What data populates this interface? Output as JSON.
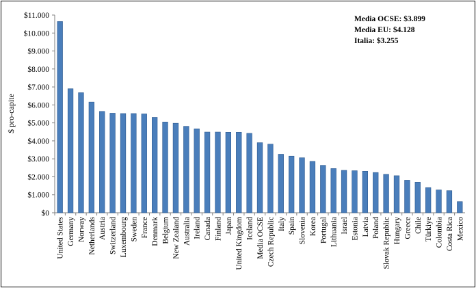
{
  "chart_data": {
    "type": "bar",
    "ylabel": "$ pro-capite",
    "ylim": [
      0,
      11000
    ],
    "ytick_step": 1000,
    "ytick_labels": [
      "$0",
      "$1.000",
      "$2.000",
      "$3.000",
      "$4.000",
      "$5.000",
      "$6.000",
      "$7.000",
      "$8.000",
      "$9.000",
      "$10.000",
      "$11.000"
    ],
    "grid": false,
    "bar_color": "#4a7ebb",
    "bar_edge_color": "#2e5a8f",
    "categories": [
      "United States",
      "Germany",
      "Norway",
      "Netherlands",
      "Austria",
      "Switzerland",
      "Luxembourg",
      "Sweden",
      "France",
      "Denmark",
      "Belgium",
      "New Zealand",
      "Australia",
      "Ireland",
      "Canada",
      "Finland",
      "Japan",
      "United Kingdom",
      "Iceland",
      "Media OCSE",
      "Czech Republic",
      "Italy",
      "Spain",
      "Slovenia",
      "Korea",
      "Portugal",
      "Lithuania",
      "Israel",
      "Estonia",
      "Latvia",
      "Poland",
      "Slovak Republic",
      "Hungary",
      "Greece",
      "Chile",
      "Türkiye",
      "Colombia",
      "Costa Rica",
      "Mexico"
    ],
    "values": [
      10640,
      6900,
      6680,
      6160,
      5640,
      5540,
      5520,
      5520,
      5500,
      5310,
      5050,
      4980,
      4810,
      4670,
      4490,
      4490,
      4480,
      4480,
      4420,
      3899,
      3820,
      3255,
      3150,
      3060,
      2860,
      2640,
      2460,
      2360,
      2340,
      2310,
      2240,
      2140,
      2060,
      1810,
      1700,
      1400,
      1270,
      1230,
      620
    ],
    "annotations": [
      "Media OCSE: $3.899",
      "Media EU: $4.128",
      "Italia: $3.255"
    ]
  }
}
